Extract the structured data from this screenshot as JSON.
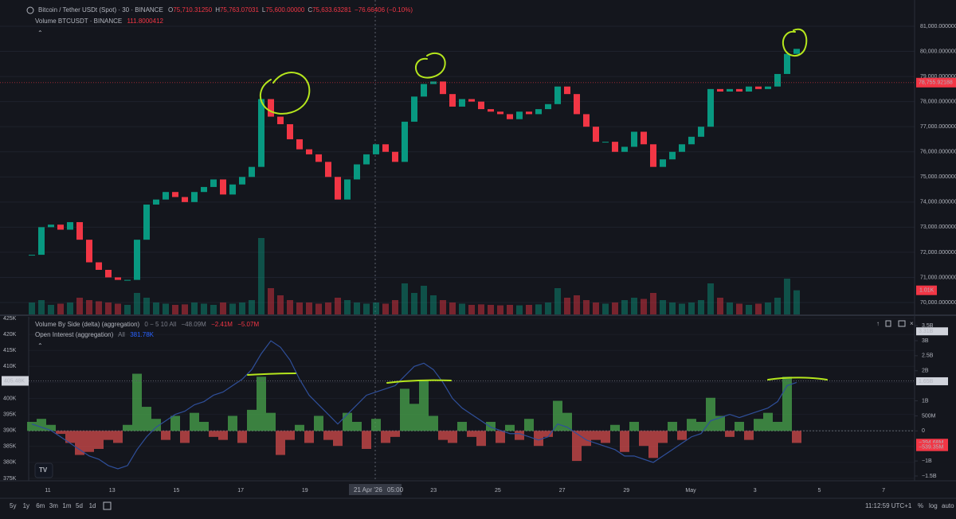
{
  "header": {
    "symbol": "Bitcoin / Tether USDt (Spot) · 30 · BINANCE",
    "ohlc": [
      {
        "key": "O",
        "value": "75,710.31250"
      },
      {
        "key": "H",
        "value": "75,763.07031"
      },
      {
        "key": "L",
        "value": "75,600.00000"
      },
      {
        "key": "C",
        "value": "75,633.63281"
      }
    ],
    "change": "−76.66406 (−0.10%)",
    "volume_label": "Volume BTCUSDT · BINANCE",
    "volume_value": "111.8000412"
  },
  "price_pane": {
    "ylim": [
      69525,
      82046
    ],
    "yticks": [
      {
        "value": 70000,
        "label": "70,000.000000"
      },
      {
        "value": 71000,
        "label": "71,000.000000"
      },
      {
        "value": 72000,
        "label": "72,000.000000"
      },
      {
        "value": 73000,
        "label": "73,000.000000"
      },
      {
        "value": 74000,
        "label": "74,000.000000"
      },
      {
        "value": 75000,
        "label": "75,000.000000"
      },
      {
        "value": 76000,
        "label": "76,000.000000"
      },
      {
        "value": 77000,
        "label": "77,000.000000"
      },
      {
        "value": 78000,
        "label": "78,000.000000"
      },
      {
        "value": 79000,
        "label": "79,000.000000"
      },
      {
        "value": 80000,
        "label": "80,000.000000"
      },
      {
        "value": 81000,
        "label": "81,000.000000"
      }
    ],
    "closes": [
      71900,
      73000,
      73100,
      72900,
      73200,
      72500,
      71600,
      71300,
      71000,
      70900,
      70900,
      72500,
      73900,
      74100,
      74400,
      74200,
      74000,
      74400,
      74600,
      74900,
      74300,
      74700,
      75000,
      75400,
      78100,
      77400,
      77100,
      76500,
      76100,
      75900,
      75600,
      75000,
      74100,
      74900,
      75500,
      75900,
      76300,
      76000,
      75600,
      77200,
      78200,
      78700,
      78800,
      78300,
      77800,
      78100,
      78000,
      77700,
      77600,
      77500,
      77300,
      77600,
      77500,
      77700,
      77900,
      78600,
      78300,
      77500,
      77000,
      76400,
      76400,
      76000,
      76200,
      76800,
      76300,
      75400,
      75700,
      76000,
      76300,
      76600,
      77000,
      78500,
      78400,
      78500,
      78400,
      78600,
      78500,
      78600,
      79100,
      79900,
      80100
    ],
    "last_price": {
      "value": 78755.92188,
      "label": "78,755.92188"
    },
    "volumes": [
      500,
      600,
      400,
      450,
      500,
      700,
      600,
      550,
      500,
      450,
      400,
      900,
      700,
      500,
      450,
      400,
      420,
      500,
      450,
      400,
      500,
      450,
      500,
      600,
      3200,
      1100,
      800,
      600,
      500,
      500,
      450,
      500,
      700,
      600,
      500,
      450,
      500,
      450,
      600,
      1300,
      900,
      1200,
      800,
      600,
      500,
      450,
      400,
      420,
      400,
      380,
      400,
      380,
      400,
      420,
      500,
      1100,
      700,
      800,
      600,
      500,
      450,
      500,
      600,
      700,
      650,
      900,
      600,
      500,
      450,
      500,
      600,
      1300,
      700,
      500,
      450,
      400,
      450,
      500,
      700,
      1500,
      1010
    ],
    "volume_badge": {
      "value": 1010,
      "label": "1.01K"
    }
  },
  "lower_pane": {
    "delta_title": "Volume By Side (delta) (aggregation)",
    "delta_params": "0 − 5 10 All",
    "delta_readouts": [
      "−48.09M",
      "−2.41M",
      "−5.07M"
    ],
    "oi_title": "Open Interest (aggregation)",
    "oi_params": "All",
    "oi_readout": "381.78K",
    "ylim": [
      375,
      425
    ],
    "yticks": [
      {
        "value": 375,
        "label": "375K"
      },
      {
        "value": 380,
        "label": "380K"
      },
      {
        "value": 385,
        "label": "385K"
      },
      {
        "value": 390,
        "label": "390K"
      },
      {
        "value": 395,
        "label": "395K"
      },
      {
        "value": 400,
        "label": "400K"
      },
      {
        "value": 405,
        "label": "405K"
      },
      {
        "value": 410,
        "label": "410K"
      },
      {
        "value": 415,
        "label": "415K"
      },
      {
        "value": 420,
        "label": "420K"
      },
      {
        "value": 425,
        "label": "425K"
      }
    ],
    "y2lim": [
      -1580,
      3740
    ],
    "y2ticks": [
      {
        "value": -1500,
        "label": "−1.5B"
      },
      {
        "value": -1000,
        "label": "−1B"
      },
      {
        "value": 0,
        "label": "0"
      },
      {
        "value": 500,
        "label": "500M"
      },
      {
        "value": 1000,
        "label": "1B"
      },
      {
        "value": 2000,
        "label": "2B"
      },
      {
        "value": 2500,
        "label": "2.5B"
      },
      {
        "value": 3000,
        "label": "3B"
      },
      {
        "value": 3500,
        "label": "3.5B"
      }
    ],
    "delta_values": [
      300,
      400,
      200,
      -100,
      -400,
      -800,
      -700,
      -600,
      -300,
      -400,
      200,
      1900,
      800,
      400,
      -300,
      500,
      -400,
      600,
      300,
      -200,
      -300,
      500,
      -400,
      700,
      1800,
      600,
      -800,
      -300,
      200,
      -400,
      500,
      -300,
      -500,
      600,
      300,
      -600,
      400,
      -400,
      -200,
      1400,
      900,
      1700,
      500,
      -300,
      -400,
      300,
      -200,
      -500,
      300,
      -400,
      200,
      -300,
      400,
      -500,
      -200,
      1000,
      600,
      -1000,
      -500,
      -300,
      -400,
      200,
      -700,
      300,
      -500,
      -900,
      -400,
      300,
      -300,
      400,
      300,
      1100,
      500,
      -200,
      300,
      -300,
      400,
      600,
      300,
      1800,
      -400
    ],
    "oi_values": [
      392,
      391,
      390,
      388,
      386,
      384,
      382,
      381,
      379,
      378,
      379,
      384,
      388,
      391,
      393,
      395,
      396,
      398,
      399,
      401,
      402,
      404,
      406,
      409,
      414,
      418,
      416,
      412,
      406,
      401,
      398,
      395,
      392,
      395,
      398,
      401,
      402,
      403,
      404,
      407,
      410,
      411,
      409,
      405,
      400,
      397,
      395,
      393,
      391,
      390,
      389,
      389,
      388,
      387,
      388,
      392,
      391,
      389,
      387,
      386,
      385,
      384,
      382,
      382,
      381,
      380,
      382,
      384,
      386,
      388,
      389,
      393,
      394,
      395,
      394,
      395,
      396,
      397,
      399,
      404,
      405
    ],
    "oi_badge": {
      "value": 405.48,
      "label": "405.48K"
    },
    "y2_badges": [
      {
        "value": 3310,
        "label": "3.31B"
      },
      {
        "value": 1650,
        "label": "1.65B"
      },
      {
        "value": -394.68,
        "label": "−394.68M"
      },
      {
        "value": -539.35,
        "label": "−539.35M"
      }
    ]
  },
  "time_axis": {
    "labels": [
      "11",
      "13",
      "15",
      "17",
      "19",
      null,
      "23",
      "25",
      "27",
      "29",
      "May",
      "3",
      "5",
      "7"
    ],
    "crosshair_date": "21 Apr '26",
    "crosshair_time": "05:00"
  },
  "toolbar": {
    "ranges": [
      "5y",
      "1y",
      "6m",
      "3m",
      "1m",
      "5d",
      "1d"
    ],
    "clock": "11:12:59 UTC+1",
    "percent": "%",
    "log": "log",
    "auto": "auto"
  }
}
